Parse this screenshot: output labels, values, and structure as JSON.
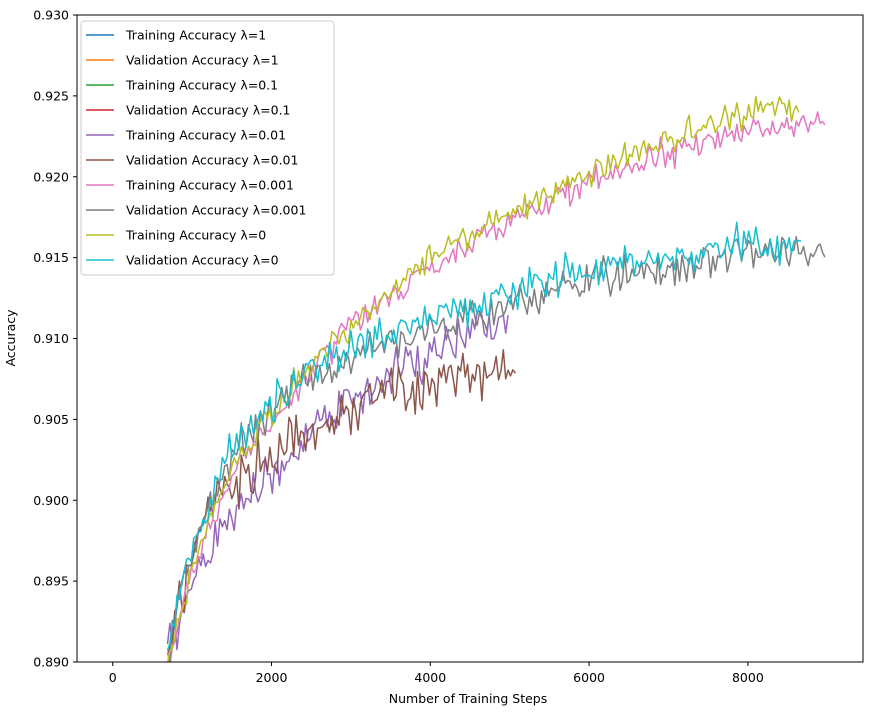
{
  "chart_data": {
    "type": "line",
    "title": "",
    "xlabel": "Number of Training Steps",
    "ylabel": "Accuracy",
    "xlim": [
      -450,
      9450
    ],
    "ylim": [
      0.89,
      0.93
    ],
    "xticks": [
      0,
      2000,
      4000,
      6000,
      8000
    ],
    "xtick_labels": [
      "0",
      "2000",
      "4000",
      "6000",
      "8000"
    ],
    "yticks": [
      0.89,
      0.895,
      0.9,
      0.905,
      0.91,
      0.915,
      0.92,
      0.925,
      0.93
    ],
    "ytick_labels": [
      "0.890",
      "0.895",
      "0.900",
      "0.905",
      "0.910",
      "0.915",
      "0.920",
      "0.925",
      "0.930"
    ],
    "grid": false,
    "legend_position": "upper-left",
    "x_step": 30,
    "series": [
      {
        "name": "Training Accuracy λ=1",
        "color": "#1f77b4",
        "anchors": [],
        "noise": 0
      },
      {
        "name": "Validation Accuracy λ=1",
        "color": "#ff7f0e",
        "anchors": [],
        "noise": 0
      },
      {
        "name": "Training Accuracy λ=0.1",
        "color": "#2ca02c",
        "anchors": [],
        "noise": 0
      },
      {
        "name": "Validation Accuracy λ=0.1",
        "color": "#d62728",
        "anchors": [],
        "noise": 0
      },
      {
        "name": "Training Accuracy λ=0.01",
        "color": "#9467bd",
        "anchors": [
          [
            690,
            0.8905
          ],
          [
            900,
            0.8935
          ],
          [
            1200,
            0.897
          ],
          [
            1500,
            0.899
          ],
          [
            2000,
            0.9015
          ],
          [
            2500,
            0.9045
          ],
          [
            3000,
            0.906
          ],
          [
            3500,
            0.9075
          ],
          [
            4000,
            0.9092
          ],
          [
            4500,
            0.9102
          ],
          [
            5000,
            0.911
          ]
        ],
        "noise": 0.0011
      },
      {
        "name": "Validation Accuracy λ=0.01",
        "color": "#8c564b",
        "anchors": [
          [
            690,
            0.8905
          ],
          [
            900,
            0.8945
          ],
          [
            1200,
            0.899
          ],
          [
            1500,
            0.901
          ],
          [
            2000,
            0.903
          ],
          [
            2500,
            0.9045
          ],
          [
            3000,
            0.9055
          ],
          [
            3500,
            0.9068
          ],
          [
            4000,
            0.9073
          ],
          [
            4500,
            0.9078
          ],
          [
            5090,
            0.9081
          ]
        ],
        "noise": 0.0012
      },
      {
        "name": "Training Accuracy λ=0.001",
        "color": "#e377c2",
        "anchors": [
          [
            690,
            0.8902
          ],
          [
            900,
            0.8935
          ],
          [
            1200,
            0.898
          ],
          [
            1500,
            0.9015
          ],
          [
            2000,
            0.905
          ],
          [
            2500,
            0.908
          ],
          [
            3000,
            0.911
          ],
          [
            3500,
            0.9125
          ],
          [
            4000,
            0.9145
          ],
          [
            4500,
            0.9158
          ],
          [
            5000,
            0.9172
          ],
          [
            5500,
            0.9185
          ],
          [
            6000,
            0.9195
          ],
          [
            6500,
            0.9205
          ],
          [
            7000,
            0.9215
          ],
          [
            7500,
            0.9222
          ],
          [
            8000,
            0.9228
          ],
          [
            8500,
            0.9233
          ],
          [
            8980,
            0.9234
          ]
        ],
        "noise": 0.0006
      },
      {
        "name": "Validation Accuracy λ=0.001",
        "color": "#7f7f7f",
        "anchors": [
          [
            690,
            0.8905
          ],
          [
            900,
            0.8955
          ],
          [
            1200,
            0.8995
          ],
          [
            1500,
            0.9025
          ],
          [
            2000,
            0.906
          ],
          [
            2500,
            0.9075
          ],
          [
            3000,
            0.9088
          ],
          [
            3500,
            0.9098
          ],
          [
            4000,
            0.9105
          ],
          [
            4500,
            0.9115
          ],
          [
            5000,
            0.912
          ],
          [
            5500,
            0.9128
          ],
          [
            6000,
            0.9135
          ],
          [
            6500,
            0.914
          ],
          [
            7000,
            0.9145
          ],
          [
            7500,
            0.9149
          ],
          [
            8000,
            0.9152
          ],
          [
            8500,
            0.9155
          ],
          [
            8980,
            0.9152
          ]
        ],
        "noise": 0.0008
      },
      {
        "name": "Training Accuracy λ=0",
        "color": "#bcbd22",
        "anchors": [
          [
            690,
            0.8902
          ],
          [
            900,
            0.894
          ],
          [
            1200,
            0.8985
          ],
          [
            1500,
            0.902
          ],
          [
            2000,
            0.9055
          ],
          [
            2500,
            0.9085
          ],
          [
            3000,
            0.911
          ],
          [
            3500,
            0.9128
          ],
          [
            4000,
            0.915
          ],
          [
            4500,
            0.9165
          ],
          [
            5000,
            0.9178
          ],
          [
            5500,
            0.919
          ],
          [
            6000,
            0.9202
          ],
          [
            6500,
            0.9213
          ],
          [
            7000,
            0.9222
          ],
          [
            7500,
            0.9232
          ],
          [
            8000,
            0.9238
          ],
          [
            8300,
            0.9245
          ],
          [
            8650,
            0.924
          ]
        ],
        "noise": 0.0006
      },
      {
        "name": "Validation Accuracy λ=0",
        "color": "#17becf",
        "anchors": [
          [
            690,
            0.8905
          ],
          [
            900,
            0.8955
          ],
          [
            1200,
            0.8995
          ],
          [
            1500,
            0.903
          ],
          [
            2000,
            0.906
          ],
          [
            2500,
            0.908
          ],
          [
            3000,
            0.9092
          ],
          [
            3500,
            0.9104
          ],
          [
            4000,
            0.9114
          ],
          [
            4500,
            0.9122
          ],
          [
            5000,
            0.9128
          ],
          [
            5500,
            0.9135
          ],
          [
            6000,
            0.9141
          ],
          [
            6500,
            0.9146
          ],
          [
            7000,
            0.9151
          ],
          [
            7500,
            0.9155
          ],
          [
            8000,
            0.9158
          ],
          [
            8500,
            0.916
          ],
          [
            8680,
            0.916
          ]
        ],
        "noise": 0.0008
      }
    ]
  }
}
